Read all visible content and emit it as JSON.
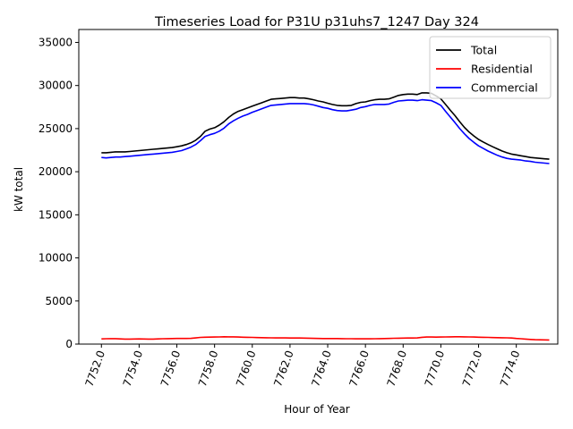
{
  "chart_data": {
    "type": "line",
    "title": "Timeseries Load for P31U p31uhs7_1247  Day 324",
    "xlabel": "Hour of Year",
    "ylabel": "kW total",
    "xlim": [
      7750.8,
      7776.2
    ],
    "ylim": [
      0,
      36500
    ],
    "xticks": [
      7752,
      7754,
      7756,
      7758,
      7760,
      7762,
      7764,
      7766,
      7768,
      7770,
      7772,
      7774
    ],
    "xtick_labels": [
      "7752.0",
      "7754.0",
      "7756.0",
      "7758.0",
      "7760.0",
      "7762.0",
      "7764.0",
      "7766.0",
      "7768.0",
      "7770.0",
      "7772.0",
      "7774.0"
    ],
    "yticks": [
      0,
      5000,
      10000,
      15000,
      20000,
      25000,
      30000,
      35000
    ],
    "ytick_labels": [
      "0",
      "5000",
      "10000",
      "15000",
      "20000",
      "25000",
      "30000",
      "35000"
    ],
    "grid": false,
    "legend_position": "top-right",
    "x": [
      7752.0,
      7752.25,
      7752.5,
      7752.75,
      7753.0,
      7753.25,
      7753.5,
      7753.75,
      7754.0,
      7754.25,
      7754.5,
      7754.75,
      7755.0,
      7755.25,
      7755.5,
      7755.75,
      7756.0,
      7756.25,
      7756.5,
      7756.75,
      7757.0,
      7757.25,
      7757.5,
      7757.75,
      7758.0,
      7758.25,
      7758.5,
      7758.75,
      7759.0,
      7759.25,
      7759.5,
      7759.75,
      7760.0,
      7760.25,
      7760.5,
      7760.75,
      7761.0,
      7761.25,
      7761.5,
      7761.75,
      7762.0,
      7762.25,
      7762.5,
      7762.75,
      7763.0,
      7763.25,
      7763.5,
      7763.75,
      7764.0,
      7764.25,
      7764.5,
      7764.75,
      7765.0,
      7765.25,
      7765.5,
      7765.75,
      7766.0,
      7766.25,
      7766.5,
      7766.75,
      7767.0,
      7767.25,
      7767.5,
      7767.75,
      7768.0,
      7768.25,
      7768.5,
      7768.75,
      7769.0,
      7769.25,
      7769.5,
      7769.75,
      7770.0,
      7770.25,
      7770.5,
      7770.75,
      7771.0,
      7771.25,
      7771.5,
      7771.75,
      7772.0,
      7772.25,
      7772.5,
      7772.75,
      7773.0,
      7773.25,
      7773.5,
      7773.75,
      7774.0,
      7774.25,
      7774.5,
      7774.75,
      7775.0,
      7775.25,
      7775.5,
      7775.75
    ],
    "series": [
      {
        "name": "Total",
        "color": "#000000",
        "values": [
          22200,
          22200,
          22250,
          22300,
          22300,
          22300,
          22350,
          22400,
          22450,
          22500,
          22550,
          22600,
          22650,
          22700,
          22750,
          22800,
          22900,
          23000,
          23150,
          23350,
          23650,
          24100,
          24700,
          24950,
          25100,
          25400,
          25800,
          26300,
          26700,
          27000,
          27200,
          27400,
          27600,
          27800,
          28000,
          28200,
          28400,
          28450,
          28500,
          28550,
          28600,
          28600,
          28550,
          28550,
          28450,
          28350,
          28200,
          28100,
          27950,
          27800,
          27700,
          27650,
          27650,
          27700,
          27900,
          28050,
          28100,
          28250,
          28350,
          28400,
          28400,
          28450,
          28650,
          28850,
          28950,
          29000,
          29000,
          28950,
          29150,
          29150,
          29100,
          28800,
          28450,
          27800,
          27150,
          26500,
          25800,
          25150,
          24600,
          24150,
          23750,
          23450,
          23150,
          22900,
          22650,
          22400,
          22200,
          22050,
          21950,
          21850,
          21750,
          21650,
          21600,
          21550,
          21500,
          21450
        ]
      },
      {
        "name": "Residential",
        "color": "#ff0000",
        "values": [
          600,
          620,
          630,
          630,
          600,
          580,
          580,
          590,
          600,
          590,
          580,
          580,
          600,
          620,
          630,
          640,
          650,
          650,
          650,
          660,
          720,
          780,
          800,
          810,
          820,
          830,
          850,
          840,
          840,
          820,
          800,
          790,
          780,
          760,
          750,
          740,
          730,
          720,
          720,
          720,
          710,
          700,
          700,
          690,
          680,
          660,
          650,
          640,
          640,
          640,
          640,
          630,
          620,
          620,
          610,
          610,
          610,
          610,
          620,
          630,
          640,
          650,
          670,
          680,
          690,
          700,
          710,
          720,
          790,
          820,
          820,
          810,
          820,
          830,
          840,
          850,
          850,
          840,
          830,
          820,
          800,
          790,
          780,
          760,
          750,
          740,
          730,
          710,
          650,
          620,
          580,
          540,
          510,
          500,
          490,
          480
        ]
      },
      {
        "name": "Commercial",
        "color": "#0000ff",
        "values": [
          21650,
          21600,
          21650,
          21700,
          21700,
          21750,
          21800,
          21850,
          21900,
          21950,
          22000,
          22050,
          22100,
          22150,
          22200,
          22250,
          22350,
          22450,
          22650,
          22850,
          23150,
          23600,
          24100,
          24300,
          24450,
          24700,
          25050,
          25550,
          25900,
          26200,
          26450,
          26650,
          26900,
          27100,
          27300,
          27500,
          27700,
          27750,
          27800,
          27850,
          27900,
          27900,
          27900,
          27900,
          27850,
          27750,
          27600,
          27450,
          27350,
          27200,
          27100,
          27050,
          27050,
          27150,
          27250,
          27450,
          27550,
          27700,
          27800,
          27800,
          27800,
          27850,
          28050,
          28200,
          28250,
          28300,
          28300,
          28250,
          28350,
          28300,
          28250,
          28000,
          27700,
          27000,
          26350,
          25700,
          25000,
          24400,
          23850,
          23400,
          23000,
          22700,
          22400,
          22150,
          21900,
          21700,
          21550,
          21450,
          21400,
          21350,
          21250,
          21200,
          21100,
          21050,
          21000,
          20950
        ]
      }
    ]
  }
}
